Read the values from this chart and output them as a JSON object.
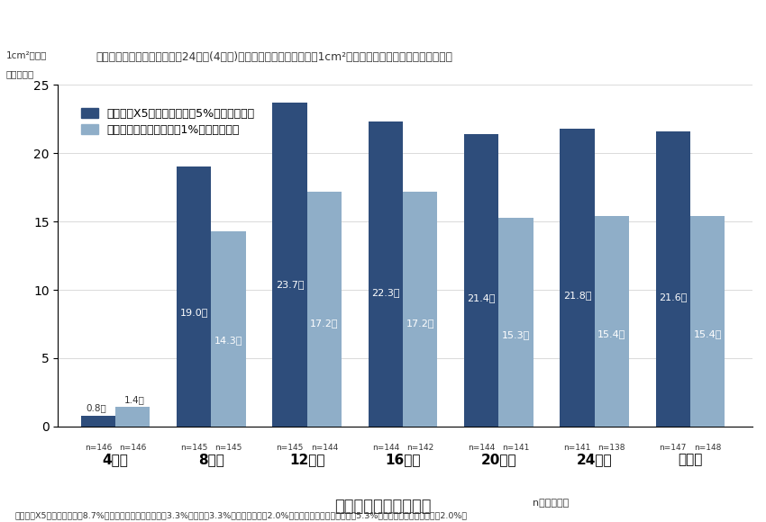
{
  "title": "毛髪数の評価：投与開始４〜24週後(4週毎)に開始時と全く同一部位（1cm²）における毛髪数の変化を確認した",
  "ylabel_line1": "1cm²当たり",
  "ylabel_line2": "の増加本数",
  "xlabel_main": "試験開始後の経過週数",
  "xlabel_sub": "n：被験者数",
  "categories": [
    "4週後",
    "8週後",
    "12週後",
    "16週後",
    "20週後",
    "24週後",
    "終了時"
  ],
  "dark_values": [
    0.8,
    19.0,
    23.7,
    22.3,
    21.4,
    21.8,
    21.6
  ],
  "light_values": [
    1.4,
    14.3,
    17.2,
    17.2,
    15.3,
    15.4,
    15.4
  ],
  "dark_labels": [
    "0.8本",
    "19.0本",
    "23.7本",
    "22.3本",
    "21.4本",
    "21.8本",
    "21.6本"
  ],
  "light_labels": [
    "1.4本",
    "14.3本",
    "17.2本",
    "17.2本",
    "15.3本",
    "15.4本",
    "15.4本"
  ],
  "dark_n": [
    "n=146",
    "n=145",
    "n=145",
    "n=144",
    "n=144",
    "n=141",
    "n=147"
  ],
  "light_n": [
    "n=146",
    "n=145",
    "n=144",
    "n=142",
    "n=141",
    "n=138",
    "n=148"
  ],
  "dark_color": "#2e4d7b",
  "light_color": "#8faec8",
  "legend_dark": "リアップX5（ミノキシジル5%ローション）",
  "legend_light": "リアップ（ミノキシジル1%ローション）",
  "ylim": [
    0,
    25
  ],
  "yticks": [
    0,
    5,
    10,
    15,
    20,
    25
  ],
  "footnote": "リアップX5の副作用発現率8.7%（主な副作用：接触皮膚炎3.3%、湿疹：3.3%、脂漏性皮膚炎2.0%）　リアップの副作用発現率5.3%（主な副作用：接触皮膚炎2.0%）",
  "bg_color": "#ffffff",
  "bar_width": 0.36
}
